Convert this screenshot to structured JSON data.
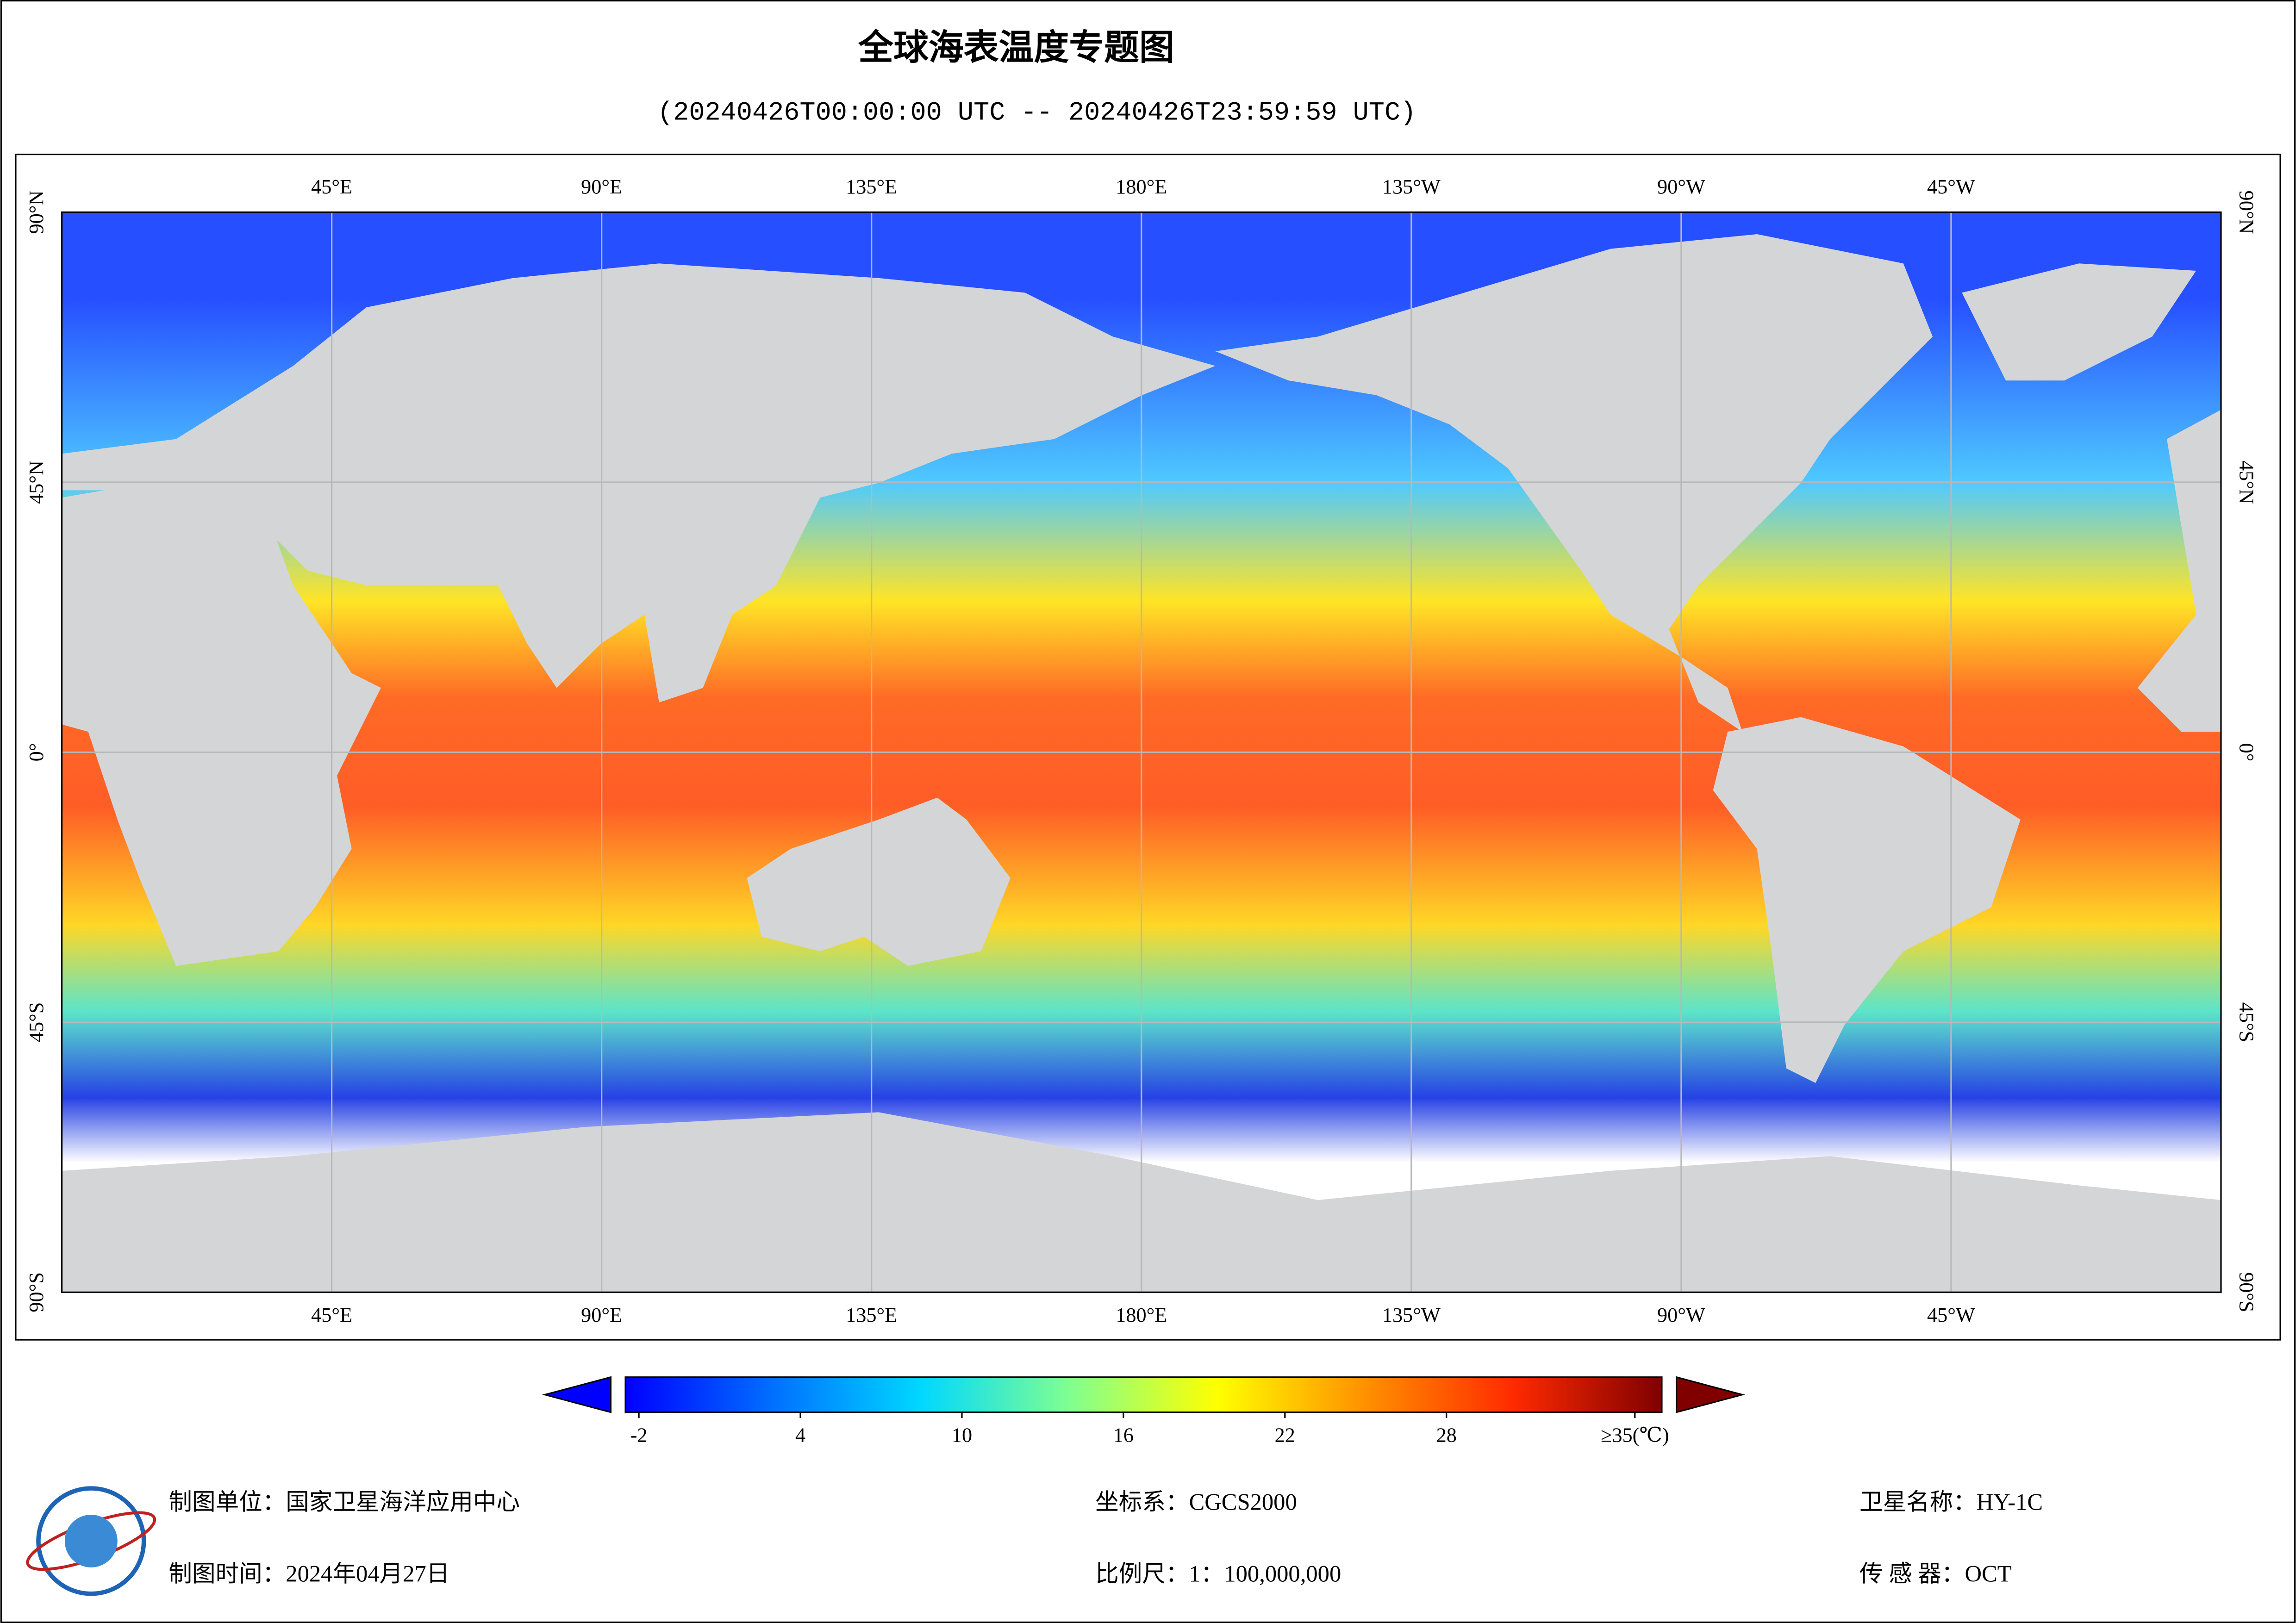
{
  "title": "全球海表温度专题图",
  "subtitle": "(20240426T00:00:00 UTC -- 20240426T23:59:59 UTC)",
  "map": {
    "lon_range": [
      0,
      360
    ],
    "lat_range": [
      90,
      -90
    ],
    "lon_ticks": [
      {
        "value": 45,
        "label": "45°E"
      },
      {
        "value": 90,
        "label": "90°E"
      },
      {
        "value": 135,
        "label": "135°E"
      },
      {
        "value": 180,
        "label": "180°E"
      },
      {
        "value": 225,
        "label": "135°W"
      },
      {
        "value": 270,
        "label": "90°W"
      },
      {
        "value": 315,
        "label": "45°W"
      }
    ],
    "lat_ticks": [
      {
        "value": 90,
        "label": "90°N"
      },
      {
        "value": 45,
        "label": "45°N"
      },
      {
        "value": 0,
        "label": "0°"
      },
      {
        "value": -45,
        "label": "45°S"
      },
      {
        "value": -90,
        "label": "90°S"
      }
    ],
    "grid": true,
    "grid_color": "#b8b8b8"
  },
  "colorbar": {
    "range": [
      -2.5,
      36
    ],
    "ticks": [
      -2,
      4,
      10,
      16,
      22,
      28,
      {
        "value": 35,
        "label": "≥35(℃)"
      }
    ],
    "colors": [
      "#0000ff",
      "#0070ff",
      "#00d8ff",
      "#80ff90",
      "#ffff00",
      "#ff9000",
      "#ff2a00",
      "#800000"
    ],
    "under_color": "#0000ff",
    "over_color": "#800000"
  },
  "footer": {
    "unit": "制图单位：国家卫星海洋应用中心",
    "date": "制图时间：2024年04月27日",
    "crs": "坐标系：CGCS2000",
    "scale": "比例尺：1：100,000,000",
    "satellite": "卫星名称：HY-1C",
    "sensor": "传 感 器：OCT"
  }
}
